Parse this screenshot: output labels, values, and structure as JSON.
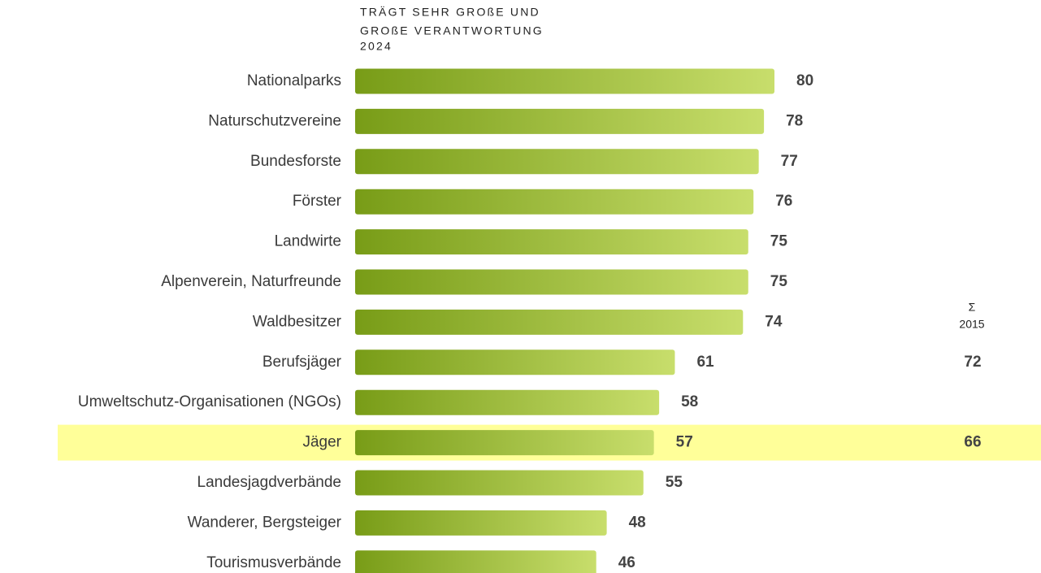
{
  "chart_data": {
    "type": "bar",
    "orientation": "horizontal",
    "title": [
      "TRÄGT SEHR GROßE UND",
      "GROßE VERANTWORTUNG"
    ],
    "categories": [
      "Nationalparks",
      "Naturschutzvereine",
      "Bundesforste",
      "Förster",
      "Landwirte",
      "Alpenverein, Naturfreunde",
      "Waldbesitzer",
      "Berufsjäger",
      "Umweltschutz-Organisationen (NGOs)",
      "Jäger",
      "Landesjagdverbände",
      "Wanderer, Bergsteiger",
      "Tourismusverbände"
    ],
    "series": [
      {
        "name": "2024",
        "color": [
          "#789c17",
          "#c8de6c"
        ],
        "values": [
          80,
          78,
          77,
          76,
          75,
          75,
          74,
          61,
          58,
          57,
          55,
          48,
          46
        ]
      },
      {
        "name": "2015",
        "symbol": "Σ",
        "values": [
          null,
          null,
          null,
          null,
          null,
          null,
          null,
          72,
          null,
          66,
          null,
          null,
          null
        ]
      }
    ],
    "xlim": [
      0,
      100
    ],
    "highlight": "Jäger",
    "highlight_color": "#ffff99"
  }
}
